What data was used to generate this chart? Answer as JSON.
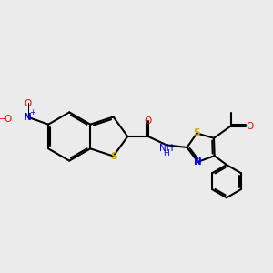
{
  "bg_color": "#ebebeb",
  "atom_colors": {
    "C": "#000000",
    "N": "#0000ff",
    "O": "#ff0000",
    "S": "#ccaa00",
    "H": "#000000"
  },
  "bond_color": "#000000",
  "bond_width": 1.5,
  "dbo": 0.07
}
